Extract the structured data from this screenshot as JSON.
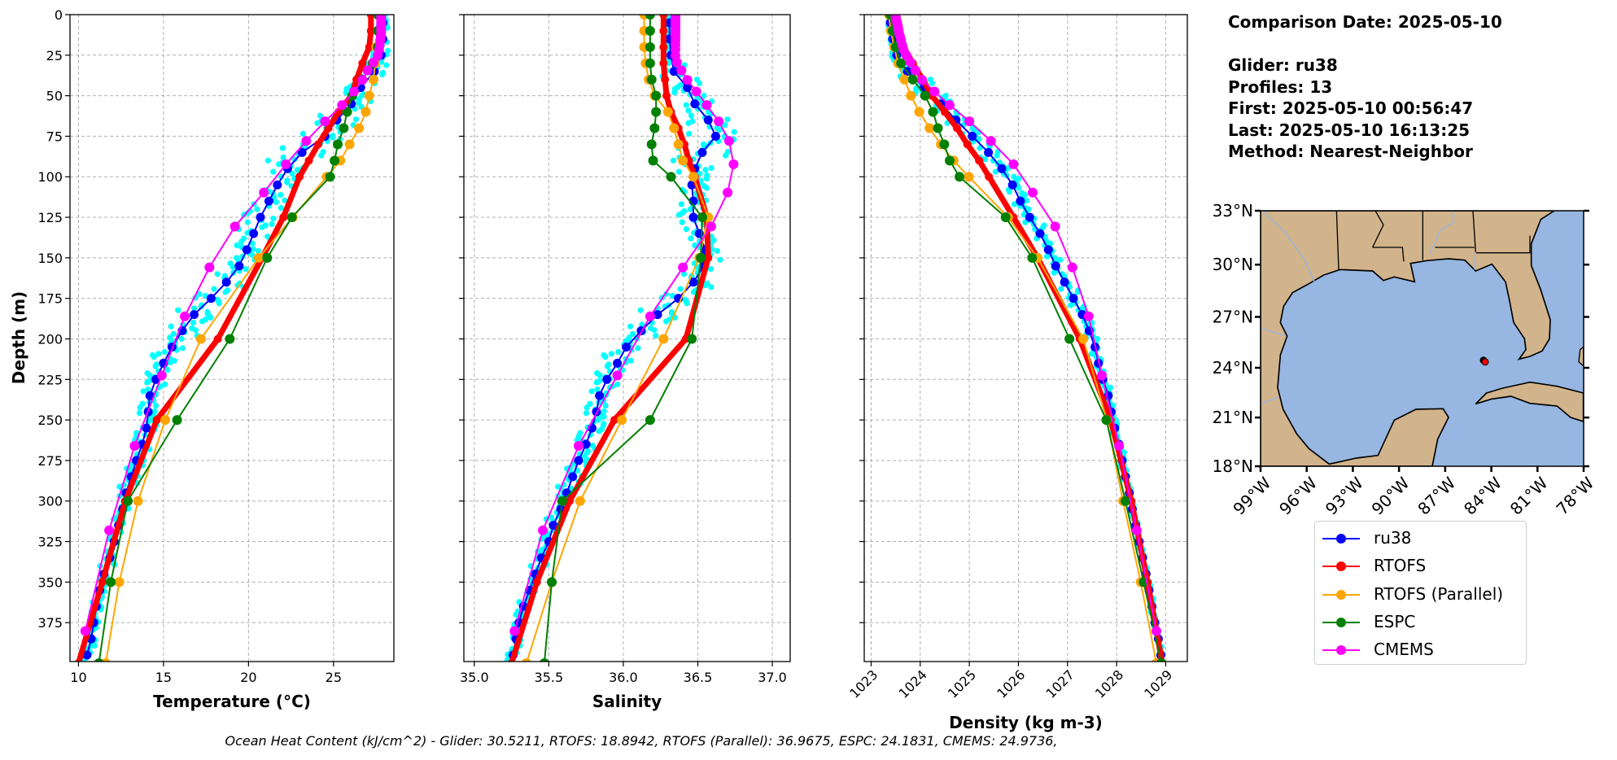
{
  "info": {
    "comparison_date": "Comparison Date: 2025-05-10",
    "glider": "Glider: ru38",
    "profiles": "Profiles: 13",
    "first": "First: 2025-05-10 00:56:47",
    "last": "Last: 2025-05-10 16:13:25",
    "method": "Method: Nearest-Neighbor"
  },
  "footer": "Ocean Heat Content (kJ/cm^2) - Glider: 30.5211,  RTOFS: 18.8942,  RTOFS (Parallel): 36.9675,  ESPC: 24.1831,  CMEMS: 24.9736,",
  "legend": [
    {
      "label": "ru38",
      "color": "#0000ff"
    },
    {
      "label": "RTOFS",
      "color": "#ff0000"
    },
    {
      "label": "RTOFS (Parallel)",
      "color": "#ffa500"
    },
    {
      "label": "ESPC",
      "color": "#008000"
    },
    {
      "label": "CMEMS",
      "color": "#ff00ff"
    }
  ],
  "map": {
    "lon_range": [
      -99,
      -78
    ],
    "lat_range": [
      18,
      33
    ],
    "lon_ticks": [
      -99,
      -96,
      -93,
      -90,
      -87,
      -84,
      -81,
      -78
    ],
    "lon_labels": [
      "99°W",
      "96°W",
      "93°W",
      "90°W",
      "87°W",
      "84°W",
      "81°W",
      "78°W"
    ],
    "lat_ticks": [
      33,
      30,
      27,
      24,
      21,
      18
    ],
    "lat_labels": [
      "33°N",
      "30°N",
      "27°N",
      "24°N",
      "21°N",
      "18°N"
    ],
    "glider_position": {
      "lon": -84.4,
      "lat": 24.35
    },
    "land_color": "#d2b48c",
    "ocean_color": "#97b6e1",
    "marker_color": "#ff0000"
  },
  "chart_data": [
    {
      "type": "line",
      "id": "temperature",
      "xlabel": "Temperature (°C)",
      "ylabel": "Depth (m)",
      "xlim": [
        9.5,
        28.55
      ],
      "ylim": [
        399,
        0
      ],
      "xticks": [
        10,
        15,
        20,
        25
      ],
      "xtick_labels": [
        "10",
        "15",
        "20",
        "25"
      ],
      "yticks": [
        0,
        25,
        50,
        75,
        100,
        125,
        150,
        175,
        200,
        225,
        250,
        275,
        300,
        325,
        350,
        375
      ],
      "ytick_labels": [
        "0",
        "25",
        "50",
        "75",
        "100",
        "125",
        "150",
        "175",
        "200",
        "225",
        "250",
        "275",
        "300",
        "325",
        "350",
        "375"
      ],
      "grid": true
    },
    {
      "type": "line",
      "id": "salinity",
      "xlabel": "Salinity",
      "xlim": [
        34.93,
        37.12
      ],
      "ylim": [
        399,
        0
      ],
      "xticks": [
        35.0,
        35.5,
        36.0,
        36.5,
        37.0
      ],
      "xtick_labels": [
        "35.0",
        "35.5",
        "36.0",
        "36.5",
        "37.0"
      ],
      "yticks": [
        0,
        25,
        50,
        75,
        100,
        125,
        150,
        175,
        200,
        225,
        250,
        275,
        300,
        325,
        350,
        375
      ],
      "grid": true
    },
    {
      "type": "line",
      "id": "density",
      "xlabel": "Density (kg m-3)",
      "xlim": [
        1022.86,
        1029.44
      ],
      "ylim": [
        399,
        0
      ],
      "xticks": [
        1023,
        1024,
        1025,
        1026,
        1027,
        1028,
        1029
      ],
      "xtick_labels": [
        "1023",
        "1024",
        "1025",
        "1026",
        "1027",
        "1028",
        "1029"
      ],
      "yticks": [
        0,
        25,
        50,
        75,
        100,
        125,
        150,
        175,
        200,
        225,
        250,
        275,
        300,
        325,
        350,
        375
      ],
      "grid": true
    }
  ],
  "series": {
    "glider_depth": [
      5,
      15,
      25,
      35,
      45,
      55,
      65,
      75,
      85,
      95,
      105,
      115,
      125,
      135,
      145,
      155,
      165,
      175,
      185,
      195,
      205,
      215,
      225,
      235,
      245,
      255,
      265,
      275,
      285,
      295,
      305,
      315,
      325,
      335,
      345,
      355,
      365,
      375,
      385,
      395
    ],
    "model_depth": [
      0,
      10,
      20,
      30,
      40,
      50,
      60,
      70,
      80,
      90,
      100,
      125,
      150,
      200,
      250,
      300,
      350,
      400
    ],
    "cmems_depth": [
      0.5,
      1.5,
      2.6,
      3.8,
      5.1,
      6.4,
      7.9,
      9.6,
      11.4,
      13.5,
      15.8,
      18.5,
      21.6,
      25.2,
      29.4,
      34.4,
      40.3,
      47.4,
      55.8,
      65.8,
      77.9,
      92.3,
      109.7,
      130.7,
      155.9,
      186.1,
      222.5,
      266.0,
      318.1,
      380.2
    ],
    "ru38": {
      "color": "#0000ff",
      "temperature": [
        27.9,
        27.9,
        27.8,
        27.4,
        26.6,
        26.05,
        25.2,
        24.5,
        23.15,
        22.3,
        21.7,
        21.2,
        20.7,
        20.3,
        19.9,
        19.45,
        18.7,
        17.8,
        16.8,
        16.1,
        15.5,
        15.0,
        14.55,
        14.2,
        14.1,
        14.0,
        13.75,
        13.4,
        13.1,
        12.8,
        12.6,
        12.35,
        12.1,
        11.85,
        11.5,
        11.25,
        11.05,
        10.9,
        10.75,
        10.5
      ],
      "salinity": [
        36.31,
        36.31,
        36.32,
        36.34,
        36.43,
        36.48,
        36.57,
        36.62,
        36.53,
        36.48,
        36.46,
        36.47,
        36.47,
        36.51,
        36.55,
        36.54,
        36.47,
        36.37,
        36.23,
        36.12,
        36.02,
        35.96,
        35.89,
        35.84,
        35.82,
        35.79,
        35.75,
        35.7,
        35.66,
        35.62,
        35.58,
        35.53,
        35.5,
        35.45,
        35.41,
        35.37,
        35.33,
        35.3,
        35.28,
        35.26
      ],
      "density": [
        1023.39,
        1023.44,
        1023.52,
        1023.74,
        1024.08,
        1024.42,
        1024.73,
        1025.06,
        1025.39,
        1025.66,
        1025.88,
        1026.04,
        1026.23,
        1026.44,
        1026.61,
        1026.76,
        1026.94,
        1027.12,
        1027.3,
        1027.44,
        1027.56,
        1027.63,
        1027.72,
        1027.83,
        1027.89,
        1027.96,
        1028.05,
        1028.11,
        1028.18,
        1028.26,
        1028.32,
        1028.39,
        1028.46,
        1028.53,
        1028.6,
        1028.66,
        1028.72,
        1028.78,
        1028.85,
        1028.9
      ]
    },
    "glider_profiles_spread": {
      "color": "#00ffff",
      "temperature": [
        0.3,
        0.3,
        0.5,
        0.8,
        1.0,
        1.2,
        1.3,
        1.3,
        1.3,
        1.2,
        1.2,
        1.1,
        1.0,
        1.0,
        1.0,
        1.0,
        1.0,
        1.0,
        1.0,
        0.9,
        0.8,
        0.7,
        0.6,
        0.6,
        0.6,
        0.6,
        0.5,
        0.5,
        0.4,
        0.4,
        0.4,
        0.3,
        0.3,
        0.3,
        0.3,
        0.3,
        0.3,
        0.3,
        0.3,
        0.3
      ],
      "salinity": [
        0.03,
        0.03,
        0.05,
        0.08,
        0.1,
        0.12,
        0.15,
        0.18,
        0.18,
        0.15,
        0.12,
        0.1,
        0.1,
        0.1,
        0.12,
        0.12,
        0.12,
        0.12,
        0.12,
        0.1,
        0.1,
        0.1,
        0.08,
        0.08,
        0.08,
        0.08,
        0.07,
        0.07,
        0.06,
        0.06,
        0.05,
        0.05,
        0.05,
        0.04,
        0.04,
        0.04,
        0.04,
        0.04,
        0.04,
        0.04
      ],
      "density": [
        0.05,
        0.05,
        0.1,
        0.15,
        0.2,
        0.2,
        0.2,
        0.2,
        0.2,
        0.18,
        0.15,
        0.15,
        0.12,
        0.12,
        0.12,
        0.1,
        0.1,
        0.1,
        0.08,
        0.08,
        0.07,
        0.06,
        0.06,
        0.05,
        0.05,
        0.05,
        0.05,
        0.05,
        0.04,
        0.04,
        0.04,
        0.04,
        0.04,
        0.04,
        0.03,
        0.03,
        0.03,
        0.03,
        0.03,
        0.03
      ]
    },
    "RTOFS": {
      "color": "#ff0000",
      "temperature": [
        27.2,
        27.2,
        27.1,
        26.7,
        26.35,
        26.05,
        25.3,
        24.7,
        24.1,
        23.55,
        23.0,
        22.05,
        20.8,
        18.2,
        14.6,
        12.75,
        11.4,
        10.0
      ],
      "salinity": [
        36.27,
        36.27,
        36.27,
        36.27,
        36.28,
        36.29,
        36.32,
        36.37,
        36.41,
        36.44,
        36.48,
        36.56,
        36.57,
        36.42,
        35.94,
        35.64,
        35.42,
        35.25
      ],
      "density": [
        1023.47,
        1023.55,
        1023.66,
        1023.85,
        1024.05,
        1024.24,
        1024.5,
        1024.75,
        1024.96,
        1025.2,
        1025.4,
        1025.9,
        1026.39,
        1027.25,
        1027.88,
        1028.3,
        1028.63,
        1028.93
      ]
    },
    "RTOFS (Parallel)": {
      "color": "#ffa500",
      "temperature": [
        27.6,
        27.6,
        27.5,
        27.45,
        27.35,
        27.1,
        26.9,
        26.5,
        25.95,
        25.4,
        24.6,
        22.6,
        20.6,
        17.2,
        15.1,
        13.5,
        12.4,
        11.6
      ],
      "salinity": [
        36.14,
        36.14,
        36.14,
        36.15,
        36.17,
        36.21,
        36.3,
        36.34,
        36.37,
        36.4,
        36.47,
        36.57,
        36.51,
        36.27,
        35.99,
        35.71,
        35.52,
        35.35
      ],
      "density": [
        1023.36,
        1023.4,
        1023.47,
        1023.55,
        1023.68,
        1023.81,
        1023.98,
        1024.19,
        1024.42,
        1024.68,
        1024.99,
        1025.79,
        1026.39,
        1027.32,
        1027.8,
        1028.13,
        1028.49,
        1028.81
      ]
    },
    "ESPC": {
      "color": "#008000",
      "temperature": [
        27.6,
        27.6,
        27.6,
        27.3,
        26.7,
        26.1,
        25.8,
        25.6,
        25.25,
        25.06,
        24.8,
        22.55,
        21.1,
        18.9,
        15.8,
        12.9,
        11.9,
        11.2
      ],
      "salinity": [
        36.18,
        36.18,
        36.18,
        36.18,
        36.19,
        36.22,
        36.22,
        36.21,
        36.19,
        36.2,
        36.32,
        36.53,
        36.52,
        36.46,
        36.18,
        35.59,
        35.52,
        35.47
      ],
      "density": [
        1023.39,
        1023.44,
        1023.5,
        1023.61,
        1023.85,
        1024.1,
        1024.26,
        1024.36,
        1024.49,
        1024.6,
        1024.8,
        1025.74,
        1026.28,
        1027.04,
        1027.79,
        1028.18,
        1028.55,
        1028.91
      ]
    },
    "CMEMS": {
      "color": "#ff00ff",
      "temperature": [
        27.8,
        27.8,
        27.8,
        27.8,
        27.8,
        27.8,
        27.8,
        27.8,
        27.8,
        27.78,
        27.75,
        27.72,
        27.68,
        27.6,
        27.35,
        27.0,
        26.7,
        26.2,
        25.5,
        24.5,
        23.4,
        22.2,
        20.9,
        19.2,
        17.7,
        16.25,
        14.9,
        13.3,
        11.8,
        10.4
      ],
      "salinity": [
        36.35,
        36.35,
        36.35,
        36.35,
        36.35,
        36.35,
        36.35,
        36.35,
        36.35,
        36.35,
        36.35,
        36.35,
        36.35,
        36.35,
        36.36,
        36.39,
        36.43,
        36.49,
        36.56,
        36.64,
        36.71,
        36.74,
        36.7,
        36.59,
        36.4,
        36.18,
        35.96,
        35.7,
        35.46,
        35.27
      ],
      "density": [
        1023.5,
        1023.5,
        1023.51,
        1023.52,
        1023.53,
        1023.54,
        1023.55,
        1023.56,
        1023.57,
        1023.59,
        1023.61,
        1023.63,
        1023.66,
        1023.72,
        1023.8,
        1023.9,
        1024.04,
        1024.29,
        1024.6,
        1025.0,
        1025.44,
        1025.9,
        1026.29,
        1026.75,
        1027.1,
        1027.43,
        1027.7,
        1028.05,
        1028.41,
        1028.81
      ]
    }
  }
}
